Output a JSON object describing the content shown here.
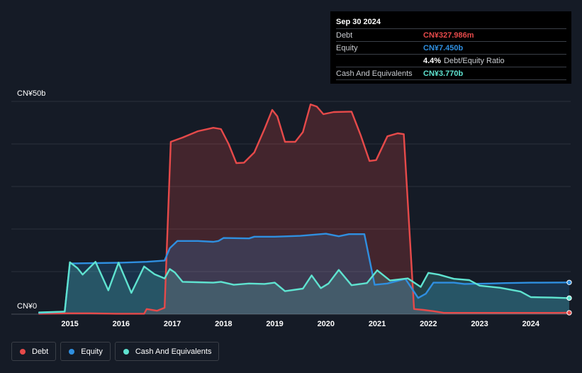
{
  "tooltip": {
    "date": "Sep 30 2024",
    "rows": [
      {
        "label": "Debt",
        "value": "CN¥327.986m",
        "color": "#e64a4a"
      },
      {
        "label": "Equity",
        "value": "CN¥7.450b",
        "color": "#2f8fe0"
      },
      {
        "label": "",
        "value": "4.4%",
        "extra": "Debt/Equity Ratio",
        "color": "#ffffff"
      },
      {
        "label": "Cash And Equivalents",
        "value": "CN¥3.770b",
        "color": "#5fe3d0"
      }
    ]
  },
  "legend": [
    {
      "label": "Debt",
      "color": "#e64a4a"
    },
    {
      "label": "Equity",
      "color": "#2f8fe0"
    },
    {
      "label": "Cash And Equivalents",
      "color": "#5fe3d0"
    }
  ],
  "chart_data": {
    "type": "area",
    "y_top_label": "CN¥50b",
    "y_bottom_label": "CN¥0",
    "ylim": [
      0,
      50
    ],
    "xlim": [
      2014.3,
      2024.75
    ],
    "x_ticks": [
      "2015",
      "2016",
      "2017",
      "2018",
      "2019",
      "2020",
      "2021",
      "2022",
      "2023",
      "2024"
    ],
    "grid": true,
    "legend_position": "bottom-left",
    "series": [
      {
        "name": "Debt",
        "color": "#e64a4a",
        "points": [
          [
            2014.4,
            0.1
          ],
          [
            2014.9,
            0.2
          ],
          [
            2015.4,
            0.2
          ],
          [
            2015.9,
            0.1
          ],
          [
            2016.2,
            0.1
          ],
          [
            2016.45,
            0.1
          ],
          [
            2016.5,
            1.2
          ],
          [
            2016.7,
            0.8
          ],
          [
            2016.85,
            1.5
          ],
          [
            2016.97,
            40.5
          ],
          [
            2017.2,
            41.5
          ],
          [
            2017.5,
            43.0
          ],
          [
            2017.8,
            43.8
          ],
          [
            2017.95,
            43.5
          ],
          [
            2018.1,
            40.0
          ],
          [
            2018.25,
            35.5
          ],
          [
            2018.4,
            35.6
          ],
          [
            2018.6,
            38.0
          ],
          [
            2018.8,
            43.5
          ],
          [
            2018.95,
            48.0
          ],
          [
            2019.05,
            46.5
          ],
          [
            2019.2,
            40.5
          ],
          [
            2019.4,
            40.5
          ],
          [
            2019.55,
            42.8
          ],
          [
            2019.7,
            49.3
          ],
          [
            2019.82,
            48.8
          ],
          [
            2019.95,
            47.0
          ],
          [
            2020.15,
            47.5
          ],
          [
            2020.5,
            47.6
          ],
          [
            2020.68,
            42.0
          ],
          [
            2020.85,
            36.0
          ],
          [
            2020.98,
            36.2
          ],
          [
            2021.2,
            41.8
          ],
          [
            2021.4,
            42.5
          ],
          [
            2021.52,
            42.3
          ],
          [
            2021.72,
            1.2
          ],
          [
            2021.9,
            1.0
          ],
          [
            2022.1,
            0.7
          ],
          [
            2022.3,
            0.3
          ],
          [
            2022.7,
            0.3
          ],
          [
            2023.3,
            0.3
          ],
          [
            2023.9,
            0.3
          ],
          [
            2024.5,
            0.3
          ],
          [
            2024.75,
            0.33
          ]
        ]
      },
      {
        "name": "Equity",
        "color": "#2f8fe0",
        "points": [
          [
            2014.4,
            0.3
          ],
          [
            2014.9,
            0.6
          ],
          [
            2015.0,
            11.9
          ],
          [
            2015.5,
            12.0
          ],
          [
            2016.0,
            12.1
          ],
          [
            2016.5,
            12.3
          ],
          [
            2016.85,
            12.6
          ],
          [
            2016.95,
            15.5
          ],
          [
            2017.1,
            17.2
          ],
          [
            2017.5,
            17.2
          ],
          [
            2017.8,
            17.0
          ],
          [
            2017.9,
            17.2
          ],
          [
            2018.0,
            17.9
          ],
          [
            2018.5,
            17.8
          ],
          [
            2018.6,
            18.2
          ],
          [
            2019.0,
            18.2
          ],
          [
            2019.5,
            18.4
          ],
          [
            2020.0,
            18.9
          ],
          [
            2020.25,
            18.3
          ],
          [
            2020.45,
            18.8
          ],
          [
            2020.75,
            18.8
          ],
          [
            2020.95,
            6.9
          ],
          [
            2021.2,
            7.2
          ],
          [
            2021.55,
            8.3
          ],
          [
            2021.8,
            3.8
          ],
          [
            2021.95,
            4.8
          ],
          [
            2022.1,
            7.4
          ],
          [
            2022.5,
            7.4
          ],
          [
            2022.7,
            7.1
          ],
          [
            2023.2,
            7.2
          ],
          [
            2023.5,
            7.3
          ],
          [
            2024.0,
            7.4
          ],
          [
            2024.75,
            7.45
          ]
        ]
      },
      {
        "name": "Cash And Equivalents",
        "color": "#5fe3d0",
        "points": [
          [
            2014.4,
            0.4
          ],
          [
            2014.9,
            0.6
          ],
          [
            2015.0,
            12.2
          ],
          [
            2015.15,
            10.8
          ],
          [
            2015.25,
            9.3
          ],
          [
            2015.5,
            12.3
          ],
          [
            2015.75,
            5.6
          ],
          [
            2015.95,
            12.1
          ],
          [
            2016.2,
            5.0
          ],
          [
            2016.45,
            11.2
          ],
          [
            2016.65,
            9.4
          ],
          [
            2016.85,
            8.4
          ],
          [
            2016.95,
            10.6
          ],
          [
            2017.05,
            9.8
          ],
          [
            2017.2,
            7.6
          ],
          [
            2017.5,
            7.5
          ],
          [
            2017.8,
            7.4
          ],
          [
            2017.95,
            7.6
          ],
          [
            2018.2,
            6.9
          ],
          [
            2018.5,
            7.2
          ],
          [
            2018.8,
            7.1
          ],
          [
            2019.0,
            7.4
          ],
          [
            2019.2,
            5.4
          ],
          [
            2019.55,
            6.0
          ],
          [
            2019.72,
            9.1
          ],
          [
            2019.9,
            6.1
          ],
          [
            2020.05,
            7.2
          ],
          [
            2020.25,
            10.4
          ],
          [
            2020.5,
            6.8
          ],
          [
            2020.8,
            7.3
          ],
          [
            2021.0,
            10.3
          ],
          [
            2021.25,
            7.9
          ],
          [
            2021.6,
            8.4
          ],
          [
            2021.85,
            6.4
          ],
          [
            2022.0,
            9.7
          ],
          [
            2022.2,
            9.3
          ],
          [
            2022.5,
            8.3
          ],
          [
            2022.8,
            8.0
          ],
          [
            2023.0,
            6.7
          ],
          [
            2023.4,
            6.2
          ],
          [
            2023.8,
            5.3
          ],
          [
            2024.0,
            4.0
          ],
          [
            2024.4,
            3.9
          ],
          [
            2024.75,
            3.77
          ]
        ]
      }
    ]
  }
}
